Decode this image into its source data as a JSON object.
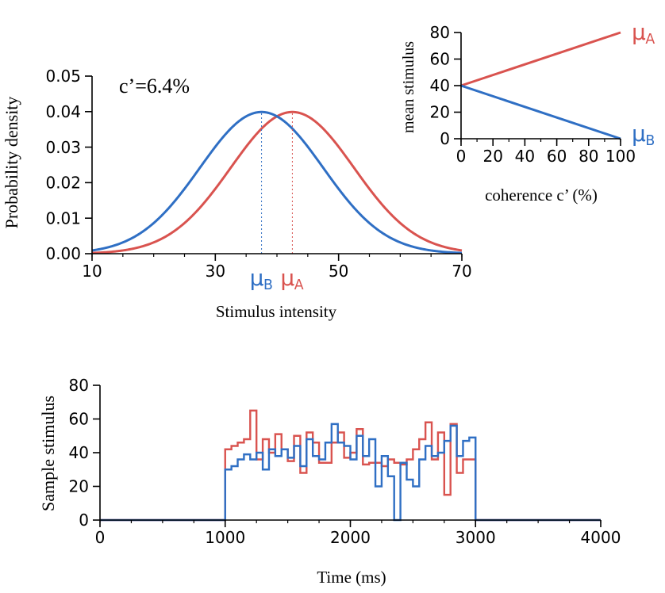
{
  "colors": {
    "A": "#d9534f",
    "B": "#2f6fc4"
  },
  "chart_data": [
    {
      "id": "density",
      "type": "line",
      "annotation": "c’=6.4%",
      "xlabel": "Stimulus intensity",
      "ylabel": "Probability density",
      "xlim": [
        10,
        70
      ],
      "ylim": [
        0,
        0.05
      ],
      "xticks": [
        10,
        30,
        50,
        70
      ],
      "yticks": [
        0.0,
        0.01,
        0.02,
        0.03,
        0.04,
        0.05
      ],
      "ytick_labels": [
        "0.00",
        "0.01",
        "0.02",
        "0.03",
        "0.04",
        "0.05"
      ],
      "sigma": 10,
      "series": [
        {
          "name": "μ",
          "sub": "A",
          "mean": 42.5,
          "color": "#d9534f"
        },
        {
          "name": "μ",
          "sub": "B",
          "mean": 37.5,
          "color": "#2f6fc4"
        }
      ]
    },
    {
      "id": "mean-stimulus",
      "type": "line",
      "xlabel": "coherence c’  (%)",
      "ylabel": "mean stimulus",
      "xlim": [
        0,
        100
      ],
      "ylim": [
        0,
        80
      ],
      "xticks": [
        0,
        20,
        40,
        60,
        80,
        100
      ],
      "yticks": [
        0,
        20,
        40,
        60,
        80
      ],
      "series": [
        {
          "name": "μ",
          "sub": "A",
          "x": [
            0,
            100
          ],
          "y": [
            40,
            80
          ],
          "color": "#d9534f"
        },
        {
          "name": "μ",
          "sub": "B",
          "x": [
            0,
            100
          ],
          "y": [
            40,
            0
          ],
          "color": "#2f6fc4"
        }
      ]
    },
    {
      "id": "sample-stimulus",
      "type": "line",
      "xlabel": "Time (ms)",
      "ylabel": "Sample stimulus",
      "xlim": [
        0,
        4000
      ],
      "ylim": [
        0,
        80
      ],
      "xticks": [
        0,
        1000,
        2000,
        3000,
        4000
      ],
      "yticks": [
        0,
        20,
        40,
        60,
        80
      ],
      "series": [
        {
          "name": "A",
          "color": "#d9534f",
          "x": [
            0,
            1000,
            1050,
            1100,
            1150,
            1200,
            1250,
            1300,
            1350,
            1400,
            1450,
            1500,
            1550,
            1600,
            1650,
            1700,
            1750,
            1800,
            1850,
            1900,
            1950,
            2000,
            2050,
            2100,
            2150,
            2200,
            2250,
            2300,
            2350,
            2400,
            2450,
            2500,
            2550,
            2600,
            2650,
            2700,
            2750,
            2800,
            2850,
            2900,
            2950,
            3000,
            4000
          ],
          "y": [
            0,
            42,
            44,
            46,
            48,
            65,
            36,
            48,
            40,
            51,
            42,
            35,
            50,
            28,
            52,
            46,
            34,
            34,
            46,
            52,
            37,
            40,
            54,
            33,
            34,
            34,
            32,
            36,
            34,
            33,
            36,
            42,
            48,
            58,
            36,
            52,
            15,
            57,
            28,
            36,
            36,
            0,
            0
          ]
        },
        {
          "name": "B",
          "color": "#2f6fc4",
          "x": [
            0,
            1000,
            1050,
            1100,
            1150,
            1200,
            1250,
            1300,
            1350,
            1400,
            1450,
            1500,
            1550,
            1600,
            1650,
            1700,
            1750,
            1800,
            1850,
            1900,
            1950,
            2000,
            2050,
            2100,
            2150,
            2200,
            2250,
            2300,
            2350,
            2400,
            2450,
            2500,
            2550,
            2600,
            2650,
            2700,
            2750,
            2800,
            2850,
            2900,
            2950,
            3000,
            4000
          ],
          "y": [
            0,
            30,
            32,
            36,
            39,
            36,
            40,
            30,
            42,
            38,
            42,
            37,
            44,
            32,
            48,
            38,
            36,
            46,
            57,
            46,
            44,
            36,
            50,
            38,
            48,
            20,
            38,
            26,
            0,
            34,
            24,
            20,
            36,
            44,
            38,
            40,
            47,
            56,
            38,
            47,
            49,
            0,
            0
          ]
        }
      ]
    }
  ]
}
